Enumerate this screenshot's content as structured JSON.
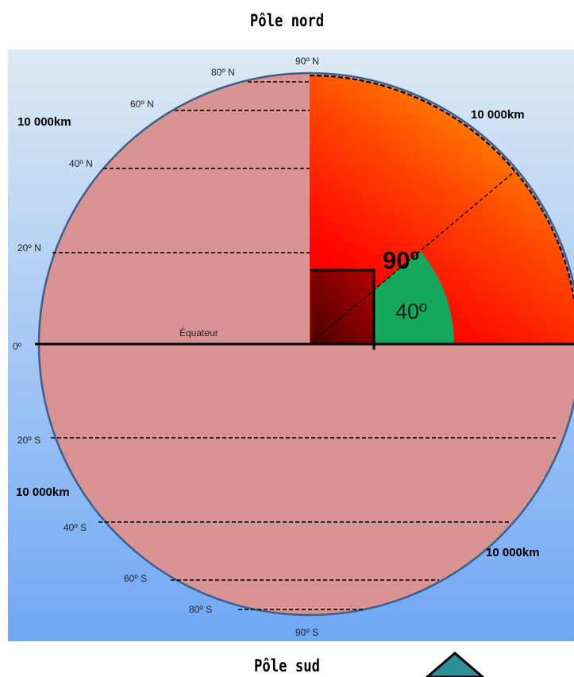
{
  "titles": {
    "north_pole": "Pôle nord",
    "south_pole": "Pôle sud"
  },
  "latitudes": {
    "n90": "90º N",
    "n80": "80º N",
    "n60": "60º N",
    "n40": "40º N",
    "n20": "20º N",
    "eq": "0º",
    "s20": "20º S",
    "s40": "40º S",
    "s60": "60º S",
    "s80": "80º S",
    "s90": "90º S"
  },
  "equator_label": "Équateur",
  "distances": {
    "top_left": "10 000km",
    "top_right": "10 000km",
    "bottom_left": "10 000km",
    "bottom_right": "10 000km"
  },
  "angles": {
    "right_angle": "90º",
    "latitude_angle": "40º"
  },
  "colors": {
    "sky_top": "#dde9f3",
    "sky_bottom": "#6fa8f5",
    "earth": "#d99393",
    "quadrant_outer": "#ffa500",
    "quadrant_inner": "#ff0000",
    "angle_wedge": "#14a85a",
    "nav_triangle": "#2f8f99"
  },
  "icons": {
    "nav": "triangle-up-icon"
  }
}
